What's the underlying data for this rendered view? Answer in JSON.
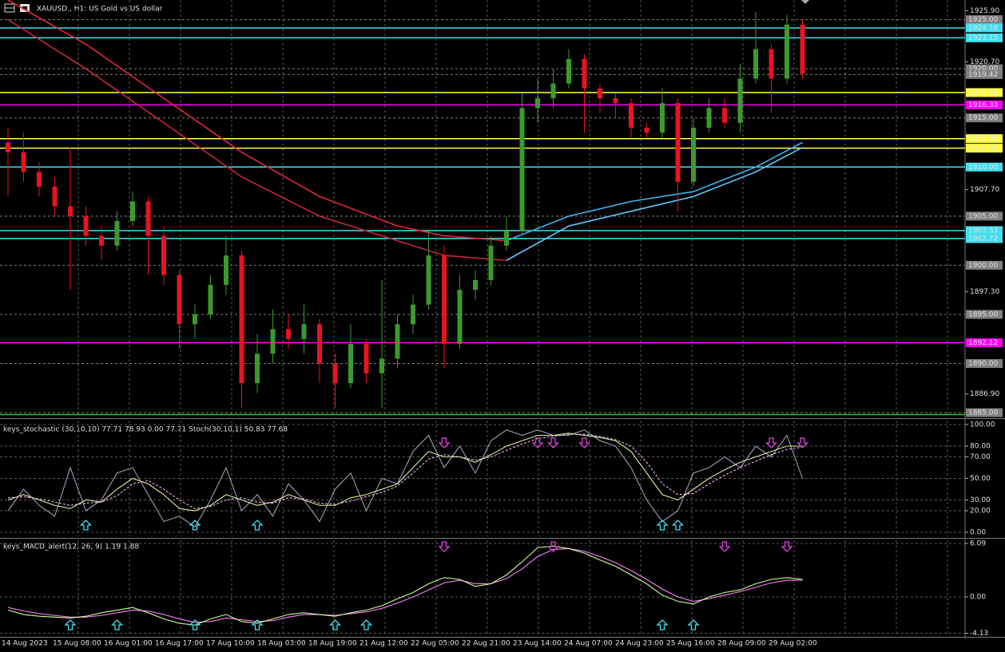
{
  "chart_data": [
    {
      "type": "candlestick",
      "title": "XAUUSD., H1:  US Gold vs US dollar",
      "ylim": [
        1884.6,
        1927.0
      ],
      "yticks": [
        {
          "value": 1925.9,
          "label": "1925.90"
        },
        {
          "value": 1920.7,
          "label": "1920.70"
        },
        {
          "value": 1907.7,
          "label": "1907.70"
        },
        {
          "value": 1897.3,
          "label": "1897.30"
        },
        {
          "value": 1886.9,
          "label": "1886.90"
        }
      ],
      "up_color": "#3c9a2c",
      "down_color": "#e8141e",
      "candles": [
        [
          1912.5,
          1914,
          1907,
          1911.5
        ],
        [
          1911.5,
          1913.5,
          1908.5,
          1909.5
        ],
        [
          1909.5,
          1910.5,
          1907,
          1908
        ],
        [
          1908,
          1909,
          1905,
          1906
        ],
        [
          1906,
          1912,
          1897.5,
          1905
        ],
        [
          1905,
          1906,
          1902,
          1903
        ],
        [
          1903,
          1904,
          1900.5,
          1902
        ],
        [
          1902,
          1905.5,
          1901.5,
          1904.5
        ],
        [
          1904.5,
          1907.5,
          1904,
          1906.5
        ],
        [
          1906.5,
          1907,
          1899,
          1903
        ],
        [
          1903,
          1904,
          1898,
          1899
        ],
        [
          1899,
          1899.5,
          1891.5,
          1894
        ],
        [
          1894,
          1896,
          1892.5,
          1895
        ],
        [
          1895,
          1899,
          1894.5,
          1898
        ],
        [
          1898,
          1903,
          1897,
          1901
        ],
        [
          1901,
          1901.5,
          1885.5,
          1888
        ],
        [
          1888,
          1893,
          1887,
          1891
        ],
        [
          1891,
          1895.5,
          1890,
          1893.5
        ],
        [
          1893.5,
          1895,
          1891.5,
          1892.5
        ],
        [
          1892.5,
          1896,
          1891,
          1894
        ],
        [
          1894,
          1894.5,
          1888,
          1890
        ],
        [
          1890,
          1891,
          1885.5,
          1888
        ],
        [
          1888,
          1894,
          1887.5,
          1892
        ],
        [
          1892,
          1892.5,
          1888,
          1889
        ],
        [
          1889,
          1898.5,
          1885.5,
          1890.5
        ],
        [
          1890.5,
          1895,
          1889.5,
          1894
        ],
        [
          1894,
          1897,
          1893,
          1896
        ],
        [
          1896,
          1903.5,
          1895.5,
          1901
        ],
        [
          1901,
          1902,
          1889.5,
          1892
        ],
        [
          1892,
          1899,
          1891.5,
          1897.5
        ],
        [
          1897.5,
          1899.5,
          1896.5,
          1898.5
        ],
        [
          1898.5,
          1903,
          1898,
          1902
        ],
        [
          1902,
          1905,
          1901.5,
          1903.5
        ],
        [
          1903.5,
          1917.5,
          1903,
          1916
        ],
        [
          1916,
          1919,
          1914.5,
          1917
        ],
        [
          1917,
          1920,
          1916,
          1918.5
        ],
        [
          1918.5,
          1922,
          1918,
          1921
        ],
        [
          1921,
          1921.5,
          1913.5,
          1918
        ],
        [
          1918,
          1918.5,
          1915.5,
          1917
        ],
        [
          1917,
          1917.5,
          1915,
          1916.5
        ],
        [
          1916.5,
          1917,
          1913,
          1914
        ],
        [
          1914,
          1914.5,
          1913,
          1913.5
        ],
        [
          1913.5,
          1918,
          1913,
          1916.5
        ],
        [
          1916.5,
          1917,
          1905.5,
          1908.5
        ],
        [
          1908.5,
          1915,
          1908,
          1914
        ],
        [
          1914,
          1917,
          1913.5,
          1916
        ],
        [
          1916,
          1917,
          1914,
          1914.5
        ],
        [
          1914.5,
          1920.5,
          1913.5,
          1919
        ],
        [
          1919,
          1925.8,
          1918.5,
          1922
        ],
        [
          1922,
          1922.5,
          1915.5,
          1919
        ],
        [
          1919,
          1925.5,
          1918.5,
          1924.5
        ],
        [
          1924.5,
          1925,
          1919,
          1919.5
        ]
      ],
      "moving_averages": [
        {
          "color": "#e0283a",
          "x": [
            0,
            5,
            10,
            15,
            20,
            25,
            28,
            32
          ],
          "values": [
            1927,
            1922.5,
            1917,
            1911.5,
            1907,
            1904,
            1903,
            1902.5
          ]
        },
        {
          "color": "#c8283a",
          "x": [
            0,
            5,
            10,
            15,
            20,
            25,
            28,
            32
          ],
          "values": [
            1925,
            1920,
            1914.5,
            1909,
            1905,
            1902.5,
            1901,
            1900.5
          ]
        },
        {
          "color": "#3cb4f0",
          "x": [
            32,
            36,
            40,
            44,
            48,
            51
          ],
          "values": [
            1902.5,
            1905,
            1906.5,
            1907.5,
            1910,
            1912.5
          ]
        },
        {
          "color": "#64c8ff",
          "x": [
            32,
            36,
            40,
            44,
            48,
            51
          ],
          "values": [
            1900.5,
            1904,
            1905.5,
            1907,
            1909.5,
            1912
          ]
        }
      ],
      "levels": [
        {
          "value": 1925.0,
          "label": "1925.00",
          "color": "#808080"
        },
        {
          "value": 1924.16,
          "label": "1924.16",
          "color": "#40e0f0"
        },
        {
          "value": 1923.15,
          "label": "1923.15",
          "color": "#40e0f0"
        },
        {
          "value": 1920.0,
          "label": "1920.00",
          "color": "#808080"
        },
        {
          "value": 1919.42,
          "label": "1919.42",
          "color": "#808080"
        },
        {
          "value": 1917.58,
          "label": "1917.58",
          "color": "#ffff40"
        },
        {
          "value": 1916.33,
          "label": "1916.33",
          "color": "#ff00ff"
        },
        {
          "value": 1915.0,
          "label": "1915.00",
          "color": "#808080"
        },
        {
          "value": 1912.89,
          "label": "1912.89",
          "color": "#ffff40"
        },
        {
          "value": 1911.92,
          "label": "1911.92",
          "color": "#ffff40"
        },
        {
          "value": 1910.0,
          "label": "1910.00",
          "color": "#40e0f0"
        },
        {
          "value": 1905.0,
          "label": "1905.00",
          "color": "#808080"
        },
        {
          "value": 1903.53,
          "label": "1903.53",
          "color": "#40e0f0"
        },
        {
          "value": 1902.72,
          "label": "1902.72",
          "color": "#40e0f0"
        },
        {
          "value": 1900.0,
          "label": "1900.00",
          "color": "#808080"
        },
        {
          "value": 1895.0,
          "label": "1895.00",
          "color": "#808080"
        },
        {
          "value": 1892.12,
          "label": "1892.12",
          "color": "#ff00ff"
        },
        {
          "value": 1890.0,
          "label": "1890.00",
          "color": "#808080"
        },
        {
          "value": 1885.0,
          "label": "1885.00",
          "color": "#808080"
        },
        {
          "value": 1884.8,
          "color": "#30c030"
        }
      ]
    },
    {
      "type": "line",
      "title": "keys_stochastic (30,10,10) 77.71 78.93 0.00 77.71 Stoch(30,10,1) 50.83 77.68",
      "ylim": [
        -3.7,
        103.7
      ],
      "yticks": [
        {
          "value": 100,
          "label": "100.00"
        },
        {
          "value": 80,
          "label": "80.00"
        },
        {
          "value": 70,
          "label": "70.00"
        },
        {
          "value": 50,
          "label": "50.00"
        },
        {
          "value": 30,
          "label": "30.00"
        },
        {
          "value": 20,
          "label": "20.00"
        },
        {
          "value": 0,
          "label": "0.00"
        }
      ],
      "series": [
        {
          "color": "#9aa0b4",
          "values": [
            20,
            40,
            25,
            15,
            60,
            20,
            30,
            55,
            60,
            35,
            10,
            15,
            5,
            30,
            60,
            20,
            35,
            15,
            45,
            30,
            10,
            40,
            55,
            20,
            50,
            45,
            75,
            90,
            60,
            80,
            55,
            85,
            95,
            90,
            95,
            90,
            90,
            95,
            85,
            80,
            60,
            30,
            10,
            20,
            55,
            60,
            70,
            60,
            80,
            70,
            90,
            50
          ]
        },
        {
          "color": "#d8f0a0",
          "values": [
            30,
            35,
            30,
            25,
            22,
            30,
            28,
            40,
            50,
            45,
            35,
            22,
            20,
            25,
            35,
            30,
            25,
            28,
            35,
            30,
            25,
            25,
            32,
            35,
            40,
            45,
            60,
            75,
            70,
            70,
            65,
            72,
            80,
            85,
            90,
            90,
            92,
            90,
            88,
            85,
            75,
            55,
            35,
            30,
            40,
            50,
            58,
            65,
            70,
            75,
            80,
            80
          ]
        },
        {
          "color": "#f0b0f0",
          "dash": true,
          "values": [
            32,
            33,
            31,
            28,
            25,
            27,
            28,
            34,
            45,
            48,
            40,
            30,
            22,
            24,
            30,
            32,
            28,
            27,
            32,
            31,
            27,
            26,
            29,
            33,
            37,
            43,
            55,
            68,
            72,
            70,
            67,
            70,
            76,
            82,
            87,
            89,
            91,
            91,
            89,
            86,
            80,
            65,
            45,
            35,
            36,
            45,
            53,
            60,
            66,
            72,
            77,
            79
          ]
        }
      ],
      "buy_signals": [
        5,
        12,
        16,
        42,
        43
      ],
      "sell_signals": [
        28,
        34,
        35,
        37,
        49,
        51
      ]
    },
    {
      "type": "line",
      "title": "keys_MACD_alert(12, 26, 9) 1.19 1.88",
      "ylim": [
        -4.45,
        6.45
      ],
      "yticks": [
        {
          "value": 6.09,
          "label": "6.09"
        },
        {
          "value": 0,
          "label": "0.00"
        },
        {
          "value": -4.13,
          "label": "-4.13"
        }
      ],
      "series": [
        {
          "color": "#ff80ff",
          "values": [
            -1.2,
            -1.6,
            -1.9,
            -2.1,
            -2.3,
            -2.3,
            -2.1,
            -1.8,
            -1.5,
            -1.6,
            -2,
            -2.5,
            -2.9,
            -2.8,
            -2.4,
            -2.6,
            -2.8,
            -2.7,
            -2.3,
            -2,
            -2,
            -2.1,
            -1.9,
            -1.7,
            -1.3,
            -0.7,
            0,
            0.8,
            1.6,
            1.9,
            1.5,
            1.5,
            2.1,
            3.2,
            4.6,
            5.4,
            5.5,
            5.2,
            4.6,
            3.9,
            3,
            2,
            0.9,
            0,
            -0.5,
            -0.2,
            0.2,
            0.6,
            1.1,
            1.6,
            1.9,
            1.9
          ]
        },
        {
          "color": "#ccff99",
          "values": [
            -1.5,
            -2,
            -2.2,
            -2.3,
            -2.4,
            -2.2,
            -1.8,
            -1.5,
            -1.2,
            -1.8,
            -2.5,
            -3,
            -3.2,
            -2.5,
            -2,
            -2.8,
            -3,
            -2.5,
            -2,
            -1.8,
            -2,
            -2.2,
            -1.8,
            -1.5,
            -1,
            -0.2,
            0.5,
            1.5,
            2.2,
            2,
            1.2,
            1.5,
            2.5,
            4,
            5.6,
            5.8,
            5.5,
            5,
            4.2,
            3.5,
            2.5,
            1.5,
            0.2,
            -0.5,
            -0.8,
            0,
            0.5,
            0.8,
            1.5,
            2,
            2.2,
            2
          ]
        }
      ],
      "buy_signals": [
        4,
        7,
        12,
        16,
        21,
        23,
        42,
        44
      ],
      "sell_signals": [
        28,
        35,
        46,
        50
      ],
      "x_labels": [
        "14 Aug 2023",
        "15 Aug 08:00",
        "16 Aug 01:00",
        "16 Aug 17:00",
        "17 Aug 10:00",
        "18 Aug 03:00",
        "18 Aug 19:00",
        "21 Aug 12:00",
        "22 Aug 05:00",
        "22 Aug 21:00",
        "23 Aug 14:00",
        "24 Aug 07:00",
        "24 Aug 23:00",
        "25 Aug 16:00",
        "28 Aug 09:00",
        "29 Aug 02:00"
      ]
    }
  ]
}
